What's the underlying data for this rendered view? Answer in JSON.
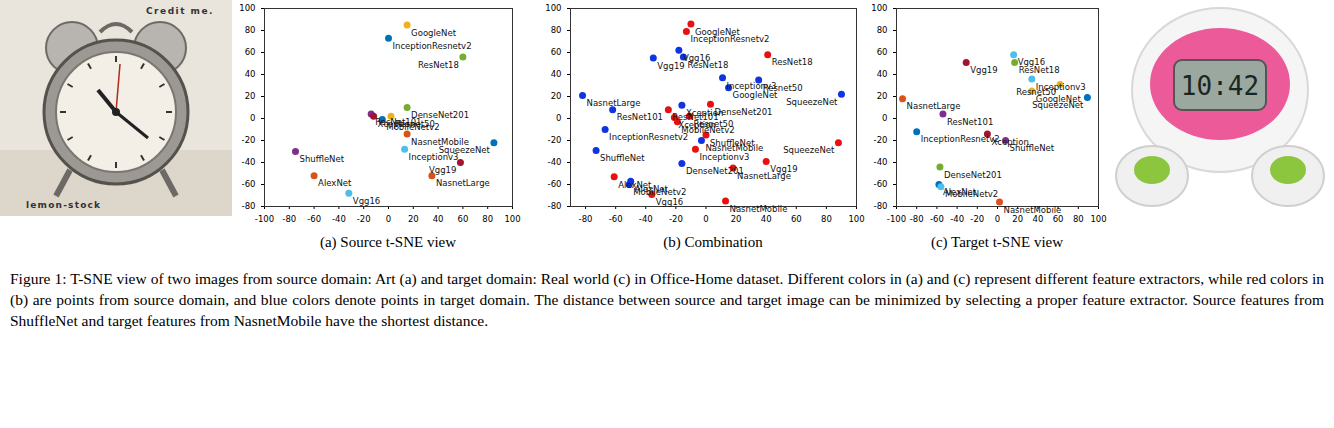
{
  "chart_data": [
    {
      "type": "scatter",
      "caption": "(a) Source t-SNE view",
      "labels": [
        "GoogleNet",
        "InceptionResnetv2",
        "ResNet18",
        "ResNet101",
        "DenseNet201",
        "Xception",
        "Resnet50",
        "MobileNetv2",
        "NasnetMobile",
        "Inceptionv3",
        "SqueezeNet",
        "Vgg19",
        "NasnetLarge",
        "ShuffleNet",
        "AlexNet",
        "Vgg16"
      ],
      "x": [
        15,
        0,
        60,
        -14,
        15,
        -12,
        2,
        -5,
        15,
        13,
        85,
        58,
        35,
        -75,
        -60,
        -32
      ],
      "y": [
        85,
        73,
        56,
        4,
        10,
        2,
        2,
        -1,
        -14,
        -28,
        -22,
        -40,
        -52,
        -30,
        -52,
        -68
      ],
      "colors": [
        "#EDB120",
        "#0072BD",
        "#77AC30",
        "#7E2F8E",
        "#77AC30",
        "#A2142F",
        "#EDB120",
        "#0072BD",
        "#D95319",
        "#4DBEEE",
        "#0072BD",
        "#A2142F",
        "#D95319",
        "#7E2F8E",
        "#D95319",
        "#4DBEEE"
      ],
      "xlim": [
        -100,
        100
      ],
      "ylim": [
        -80,
        100
      ],
      "xticks": [
        -100,
        -80,
        -60,
        -40,
        -20,
        0,
        20,
        40,
        60,
        80,
        100
      ],
      "yticks": [
        -80,
        -60,
        -40,
        -20,
        0,
        20,
        40,
        60,
        80,
        100
      ]
    },
    {
      "type": "scatter",
      "caption": "(b) Combination",
      "labels": [
        "GoogleNet",
        "InceptionResnetv2",
        "ResNet18",
        "DenseNet201",
        "ResNet101",
        "Xception",
        "Resnet50",
        "MobileNetv2",
        "ShuffleNet",
        "NasnetMobile",
        "Inceptionv3",
        "SqueezeNet",
        "Vgg19",
        "NasnetLarge",
        "AlexNet",
        "Vgg16",
        "Vgg16",
        "ResNet18",
        "Vgg19",
        "Inceptionv3",
        "Resnet50",
        "GoogleNet",
        "SqueezeNet",
        "NasnetLarge",
        "ResNet101",
        "Xception",
        "InceptionResnetv2",
        "DenseNet201",
        "AlexNet",
        "MobileNetv2",
        "NasnetMobile",
        "ShuffleNet"
      ],
      "x": [
        -10,
        -13,
        41,
        3,
        -25,
        -21,
        -11,
        -19,
        0,
        13,
        -7,
        88,
        40,
        18,
        -61,
        -36,
        -18,
        -15,
        -35,
        11,
        35,
        15,
        90,
        -82,
        -62,
        -16,
        -67,
        -16,
        -50,
        -51,
        -3,
        -73
      ],
      "y": [
        86,
        79,
        58,
        13,
        8,
        1,
        2,
        -3,
        -15,
        -75,
        -28,
        -22,
        -39,
        -45,
        -53,
        -69,
        62,
        56,
        55,
        37,
        35,
        28,
        22,
        21,
        8,
        12,
        -10,
        -41,
        -57,
        -60,
        -20,
        -29
      ],
      "colors": [
        "#E81010",
        "#E81010",
        "#E81010",
        "#E81010",
        "#E81010",
        "#E81010",
        "#E81010",
        "#E81010",
        "#E81010",
        "#E81010",
        "#E81010",
        "#E81010",
        "#E81010",
        "#E81010",
        "#E81010",
        "#E81010",
        "#1035E0",
        "#1035E0",
        "#1035E0",
        "#1035E0",
        "#1035E0",
        "#1035E0",
        "#1035E0",
        "#1035E0",
        "#1035E0",
        "#1035E0",
        "#1035E0",
        "#1035E0",
        "#1035E0",
        "#1035E0",
        "#1035E0",
        "#1035E0"
      ],
      "xlim": [
        -90,
        100
      ],
      "ylim": [
        -80,
        100
      ],
      "xticks": [
        -80,
        -60,
        -40,
        -20,
        0,
        20,
        40,
        60,
        80,
        100
      ],
      "yticks": [
        -80,
        -60,
        -40,
        -20,
        0,
        20,
        40,
        60,
        80,
        100
      ]
    },
    {
      "type": "scatter",
      "caption": "(c) Target t-SNE view",
      "labels": [
        "Vgg16",
        "Vgg19",
        "ResNet18",
        "Inceptionv3",
        "Resnet50",
        "GoogleNet",
        "SqueezeNet",
        "NasnetLarge",
        "ResNet101",
        "InceptionResnetv2",
        "Xception",
        "ShuffleNet",
        "DenseNet201",
        "AlexNet",
        "MobileNetv2",
        "NasnetMobile"
      ],
      "x": [
        16,
        -31,
        17,
        34,
        62,
        34,
        89,
        -94,
        -54,
        -80,
        -10,
        8,
        -57,
        -58,
        -56,
        2
      ],
      "y": [
        58,
        51,
        51,
        36,
        31,
        25,
        19,
        18,
        4,
        -12,
        -14,
        -20,
        -44,
        -60,
        -62,
        -76
      ],
      "colors": [
        "#4DBEEE",
        "#A2142F",
        "#77AC30",
        "#4DBEEE",
        "#EDB120",
        "#EDB120",
        "#0072BD",
        "#D95319",
        "#7E2F8E",
        "#0072BD",
        "#A2142F",
        "#7E2F8E",
        "#77AC30",
        "#0072BD",
        "#4DBEEE",
        "#D95319"
      ],
      "xlim": [
        -100,
        100
      ],
      "ylim": [
        -80,
        100
      ],
      "xticks": [
        -100,
        -80,
        -60,
        -40,
        -20,
        0,
        20,
        40,
        60,
        80,
        100
      ],
      "yticks": [
        -80,
        -60,
        -40,
        -20,
        0,
        20,
        40,
        60,
        80,
        100
      ]
    }
  ],
  "photos": [
    {
      "texts": [
        "Credit me.",
        "lemon-stock"
      ]
    },
    {
      "texts": [
        "10:42"
      ]
    }
  ],
  "caption": "Figure 1: T-SNE view of two images from source domain: Art (a) and target domain: Real world (c) in Office-Home dataset. Different colors in (a) and (c) represent different feature extractors, while red colors in (b) are points from source domain, and blue colors denote points in target domain. The distance between source and target image can be minimized by selecting a proper feature extractor. Source features from ShuffleNet and target features from NasnetMobile have the shortest distance."
}
